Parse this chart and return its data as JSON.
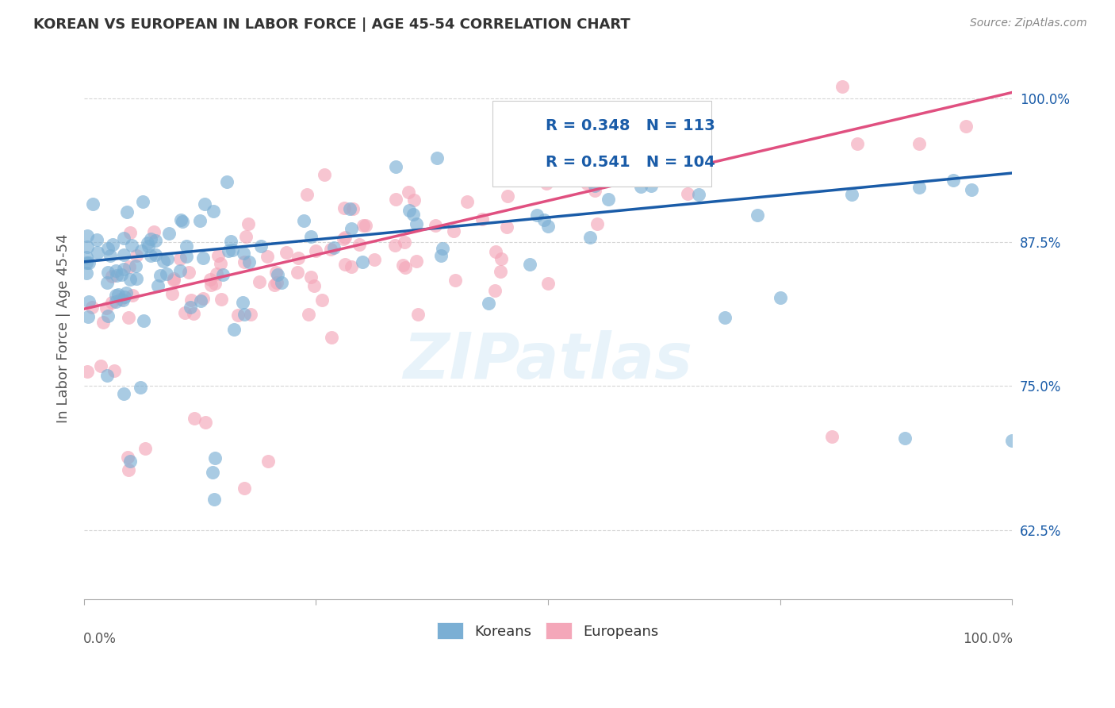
{
  "title": "KOREAN VS EUROPEAN IN LABOR FORCE | AGE 45-54 CORRELATION CHART",
  "source": "Source: ZipAtlas.com",
  "ylabel": "In Labor Force | Age 45-54",
  "ytick_labels": [
    "62.5%",
    "75.0%",
    "87.5%",
    "100.0%"
  ],
  "ytick_values": [
    0.625,
    0.75,
    0.875,
    1.0
  ],
  "xlim": [
    0.0,
    1.0
  ],
  "ylim": [
    0.565,
    1.035
  ],
  "korean_color": "#7bafd4",
  "european_color": "#f4a7b9",
  "korean_line_color": "#1a5ca8",
  "european_line_color": "#e05080",
  "korean_R": 0.348,
  "korean_N": 113,
  "european_R": 0.541,
  "european_N": 104,
  "legend_text_color": "#1a5ca8",
  "legend_N_color": "#333333",
  "watermark": "ZIPatlas",
  "korean_line_x0": 0.0,
  "korean_line_y0": 0.858,
  "korean_line_x1": 1.0,
  "korean_line_y1": 0.935,
  "european_line_x0": 0.0,
  "european_line_y0": 0.817,
  "european_line_x1": 1.0,
  "european_line_y1": 1.005
}
